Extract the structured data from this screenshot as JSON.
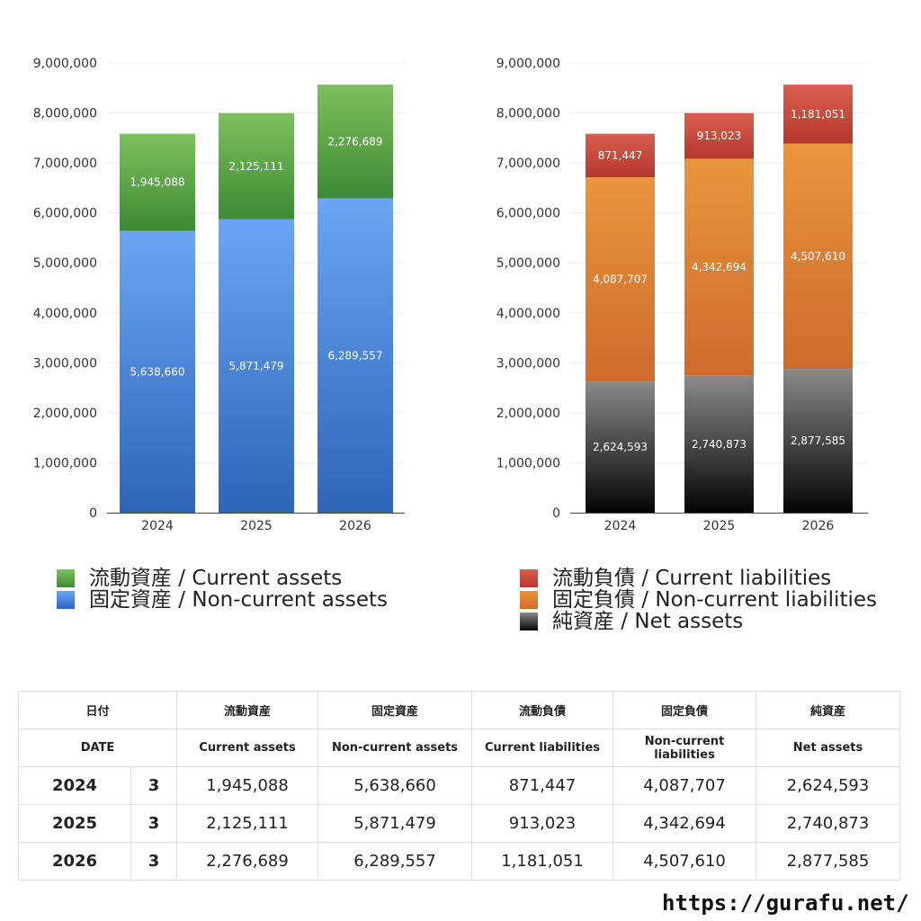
{
  "chart_data": [
    {
      "type": "bar",
      "stacked": true,
      "categories": [
        "2024",
        "2025",
        "2026"
      ],
      "ylim": [
        0,
        9000000
      ],
      "yticks": [
        0,
        1000000,
        2000000,
        3000000,
        4000000,
        5000000,
        6000000,
        7000000,
        8000000,
        9000000
      ],
      "ytick_labels": [
        "0",
        "1,000,000",
        "2,000,000",
        "3,000,000",
        "4,000,000",
        "5,000,000",
        "6,000,000",
        "7,000,000",
        "8,000,000",
        "9,000,000"
      ],
      "grid": true,
      "series": [
        {
          "name": "固定資産 / Non-current assets",
          "values": [
            5638660,
            5871479,
            6289557
          ],
          "labels": [
            "5,638,660",
            "5,871,479",
            "6,289,557"
          ],
          "color_top": "#6aa6f3",
          "color_bottom": "#2f64b8"
        },
        {
          "name": "流動資産 / Current assets",
          "values": [
            1945088,
            2125111,
            2276689
          ],
          "labels": [
            "1,945,088",
            "2,125,111",
            "2,276,689"
          ],
          "color_top": "#7dc15c",
          "color_bottom": "#3d8a35"
        }
      ]
    },
    {
      "type": "bar",
      "stacked": true,
      "categories": [
        "2024",
        "2025",
        "2026"
      ],
      "ylim": [
        0,
        9000000
      ],
      "yticks": [
        0,
        1000000,
        2000000,
        3000000,
        4000000,
        5000000,
        6000000,
        7000000,
        8000000,
        9000000
      ],
      "ytick_labels": [
        "0",
        "1,000,000",
        "2,000,000",
        "3,000,000",
        "4,000,000",
        "5,000,000",
        "6,000,000",
        "7,000,000",
        "8,000,000",
        "9,000,000"
      ],
      "grid": true,
      "series": [
        {
          "name": "純資産 / Net assets",
          "values": [
            2624593,
            2740873,
            2877585
          ],
          "labels": [
            "2,624,593",
            "2,740,873",
            "2,877,585"
          ],
          "color_top": "#8a8a8a",
          "color_bottom": "#050505"
        },
        {
          "name": "固定負債 / Non-current liabilities",
          "values": [
            4087707,
            4342694,
            4507610
          ],
          "labels": [
            "4,087,707",
            "4,342,694",
            "4,507,610"
          ],
          "color_top": "#e8963c",
          "color_bottom": "#cf6a2c"
        },
        {
          "name": "流動負債 / Current liabilities",
          "values": [
            871447,
            913023,
            1181051
          ],
          "labels": [
            "871,447",
            "913,023",
            "1,181,051"
          ],
          "color_top": "#d9604f",
          "color_bottom": "#b6372c"
        }
      ]
    }
  ],
  "legends": {
    "left": [
      {
        "label": "流動資産 / Current assets",
        "color_top": "#7dc15c",
        "color_bottom": "#3d8a35"
      },
      {
        "label": "固定資産 / Non-current assets",
        "color_top": "#6aa6f3",
        "color_bottom": "#2f64b8"
      }
    ],
    "right": [
      {
        "label": "流動負債 / Current liabilities",
        "color_top": "#d9604f",
        "color_bottom": "#b6372c"
      },
      {
        "label": "固定負債 / Non-current liabilities",
        "color_top": "#e8963c",
        "color_bottom": "#cf6a2c"
      },
      {
        "label": "純資産 / Net assets",
        "color_top": "#8a8a8a",
        "color_bottom": "#050505"
      }
    ]
  },
  "table": {
    "header_jp": [
      "日付",
      "",
      "流動資産",
      "固定資産",
      "流動負債",
      "固定負債",
      "純資産"
    ],
    "header_en": [
      "DATE",
      "",
      "Current assets",
      "Non-current assets",
      "Current liabilities",
      "Non-current liabilities",
      "Net assets"
    ],
    "rows": [
      [
        "2024",
        "3",
        "1,945,088",
        "5,638,660",
        "871,447",
        "4,087,707",
        "2,624,593"
      ],
      [
        "2025",
        "3",
        "2,125,111",
        "5,871,479",
        "913,023",
        "4,342,694",
        "2,740,873"
      ],
      [
        "2026",
        "3",
        "2,276,689",
        "6,289,557",
        "1,181,051",
        "4,507,610",
        "2,877,585"
      ]
    ]
  },
  "site_url": "https://gurafu.net/"
}
